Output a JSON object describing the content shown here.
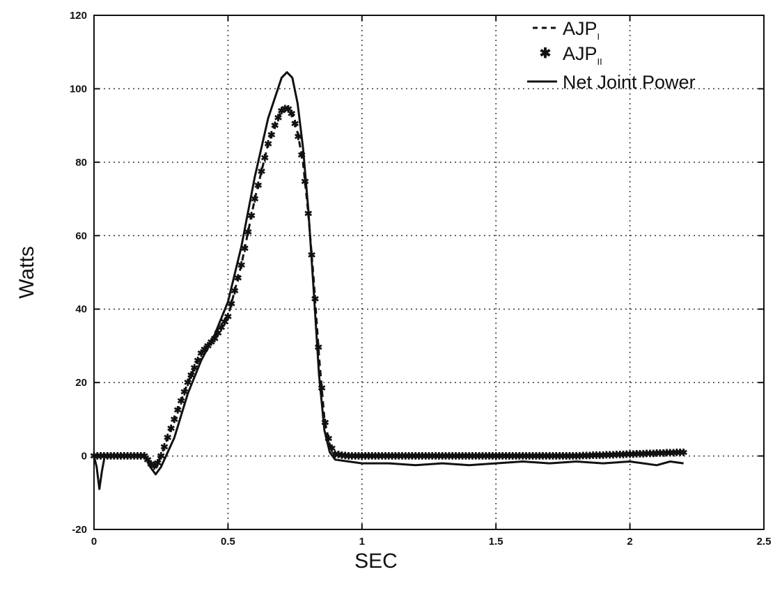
{
  "chart_data": {
    "type": "line",
    "title": "",
    "xlabel": "SEC",
    "ylabel": "Watts",
    "xlim": [
      0,
      2.5
    ],
    "ylim": [
      -20,
      120
    ],
    "xticks": [
      0,
      0.5,
      1,
      1.5,
      2,
      2.5
    ],
    "xtick_labels": [
      "0",
      "0.5",
      "1",
      "1.5",
      "2",
      "2.5"
    ],
    "yticks": [
      -20,
      0,
      20,
      40,
      60,
      80,
      100,
      120
    ],
    "ytick_labels": [
      "-20",
      "0",
      "20",
      "40",
      "60",
      "80",
      "100",
      "120"
    ],
    "grid": true,
    "legend_position": "top-right",
    "series": [
      {
        "name": "AJP",
        "name_subscript": "I",
        "style": "dashed",
        "x": [
          0,
          0.05,
          0.1,
          0.15,
          0.19,
          0.21,
          0.23,
          0.25,
          0.3,
          0.35,
          0.4,
          0.45,
          0.5,
          0.55,
          0.6,
          0.65,
          0.68,
          0.7,
          0.72,
          0.74,
          0.76,
          0.78,
          0.8,
          0.82,
          0.84,
          0.86,
          0.88,
          0.9,
          0.95,
          1.0,
          1.2,
          1.4,
          1.6,
          1.8,
          2.0,
          2.2
        ],
        "y": [
          0,
          0,
          0,
          0,
          0,
          -2,
          -3,
          0,
          10,
          20,
          28,
          32,
          38,
          52,
          70,
          85,
          91,
          94,
          95,
          93,
          88,
          80,
          66,
          48,
          27,
          10,
          3,
          0.5,
          0,
          0,
          0,
          0,
          0,
          0,
          0.5,
          1
        ]
      },
      {
        "name": "AJP",
        "name_subscript": "II",
        "style": "markers",
        "x": [
          0,
          0.05,
          0.1,
          0.15,
          0.19,
          0.21,
          0.23,
          0.25,
          0.3,
          0.35,
          0.4,
          0.45,
          0.5,
          0.55,
          0.6,
          0.65,
          0.68,
          0.7,
          0.72,
          0.74,
          0.76,
          0.78,
          0.8,
          0.82,
          0.84,
          0.86,
          0.88,
          0.9,
          0.95,
          1.0,
          1.2,
          1.4,
          1.6,
          1.8,
          2.0,
          2.2
        ],
        "y": [
          0,
          0,
          0,
          0,
          0,
          -2,
          -3,
          0,
          10,
          20,
          28,
          32,
          38,
          52,
          70,
          85,
          91,
          94,
          95,
          93,
          88,
          80,
          66,
          48,
          27,
          10,
          3,
          0.5,
          0,
          0,
          0,
          0,
          0,
          0,
          0.5,
          1
        ]
      },
      {
        "name": "Net Joint Power",
        "style": "solid",
        "x": [
          0,
          0.01,
          0.02,
          0.03,
          0.04,
          0.06,
          0.1,
          0.15,
          0.19,
          0.21,
          0.23,
          0.25,
          0.3,
          0.35,
          0.4,
          0.45,
          0.5,
          0.55,
          0.6,
          0.65,
          0.7,
          0.72,
          0.74,
          0.76,
          0.78,
          0.8,
          0.82,
          0.84,
          0.86,
          0.88,
          0.9,
          0.95,
          1.0,
          1.1,
          1.2,
          1.3,
          1.4,
          1.5,
          1.6,
          1.7,
          1.8,
          1.9,
          2.0,
          2.05,
          2.1,
          2.15,
          2.2
        ],
        "y": [
          0,
          -3,
          -9,
          -4,
          0,
          0,
          0,
          0,
          0,
          -3,
          -5,
          -3,
          5,
          17,
          26,
          33,
          42,
          57,
          76,
          92,
          103,
          104.5,
          103,
          96,
          84,
          67,
          45,
          22,
          7,
          1,
          -1,
          -1.5,
          -2,
          -2,
          -2.5,
          -2,
          -2.5,
          -2,
          -1.5,
          -2,
          -1.5,
          -2,
          -1.5,
          -2,
          -2.5,
          -1.5,
          -2
        ]
      }
    ]
  }
}
